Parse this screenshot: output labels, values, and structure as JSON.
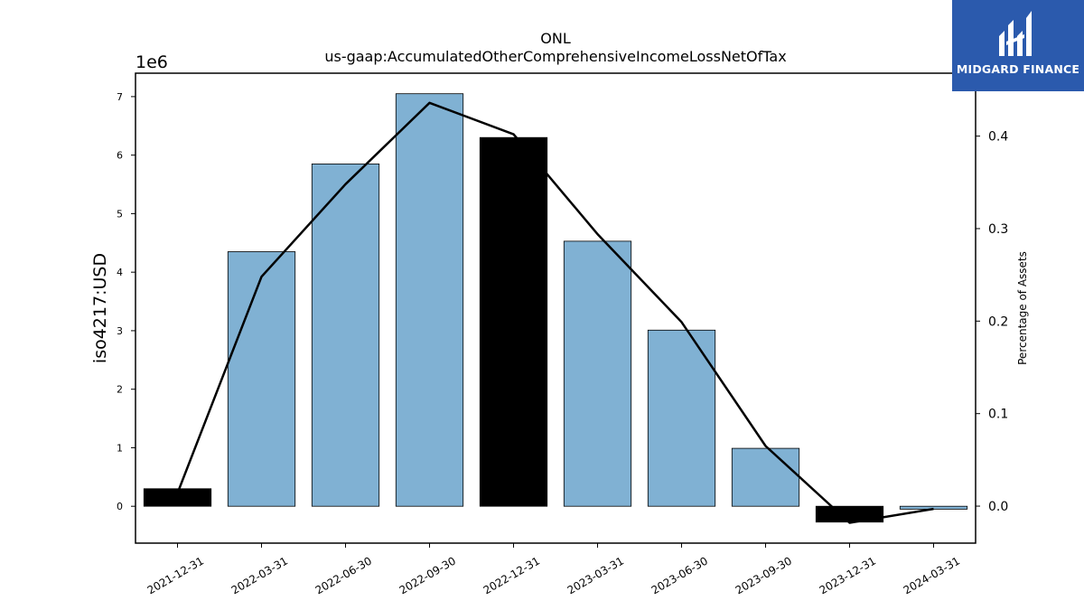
{
  "logo": {
    "text": "MIDGARD FINANCE",
    "background_color": "#2b5aad",
    "icon": "midgard-logo-icon"
  },
  "chart_data": {
    "type": "bar",
    "title": "ONL",
    "subtitle": "us-gaap:AccumulatedOtherComprehensiveIncomeLossNetOfTax",
    "ylabel": "iso4217:USD",
    "y2label": "Percentage of Assets",
    "yscale_note": "1e6",
    "categories": [
      "2021-12-31",
      "2022-03-31",
      "2022-06-30",
      "2022-09-30",
      "2022-12-31",
      "2023-03-31",
      "2023-06-30",
      "2023-09-30",
      "2023-12-31",
      "2024-03-31"
    ],
    "values": [
      0.3,
      4.35,
      5.85,
      7.05,
      6.3,
      4.53,
      3.01,
      0.99,
      -0.27,
      -0.05
    ],
    "value_multiplier": 1000000,
    "bar_colors": [
      "#000000",
      "#80b1d3",
      "#80b1d3",
      "#80b1d3",
      "#000000",
      "#80b1d3",
      "#80b1d3",
      "#80b1d3",
      "#000000",
      "#80b1d3"
    ],
    "line_values": [
      0.014,
      0.248,
      0.348,
      0.436,
      0.402,
      0.294,
      0.199,
      0.065,
      -0.018,
      -0.003
    ],
    "line_color": "#000000",
    "ylim": [
      -0.63,
      7.4
    ],
    "y2lim": [
      -0.04,
      0.468
    ],
    "yticks": [
      0,
      1,
      2,
      3,
      4,
      5,
      6,
      7
    ],
    "y2ticks": [
      0.0,
      0.1,
      0.2,
      0.3,
      0.4
    ],
    "grid": false,
    "legend": "none"
  }
}
